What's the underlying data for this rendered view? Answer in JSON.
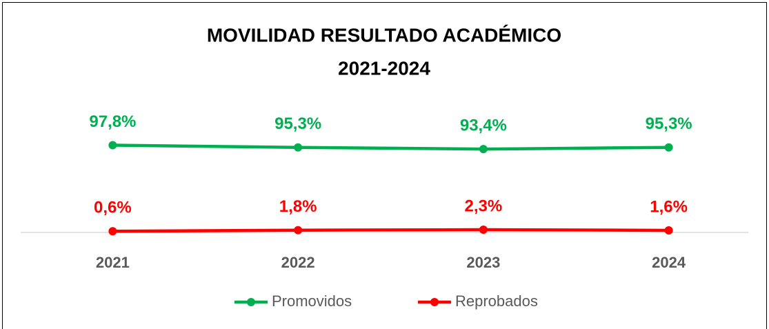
{
  "chart_data": {
    "type": "line",
    "title": "MOVILIDAD RESULTADO ACADÉMICO",
    "subtitle": "2021-2024",
    "categories": [
      "2021",
      "2022",
      "2023",
      "2024"
    ],
    "series": [
      {
        "name": "Promovidos",
        "color": "#00b050",
        "values": [
          97.8,
          95.3,
          93.4,
          95.3
        ],
        "value_labels": [
          "97,8%",
          "95,3%",
          "93,4%",
          "95,3%"
        ]
      },
      {
        "name": "Reprobados",
        "color": "#ff0000",
        "values": [
          0.6,
          1.8,
          2.3,
          1.6
        ],
        "value_labels": [
          "0,6%",
          "1,8%",
          "2,3%",
          "1,6%"
        ]
      }
    ],
    "ylim": [
      0,
      120
    ],
    "legend": "bottom"
  }
}
